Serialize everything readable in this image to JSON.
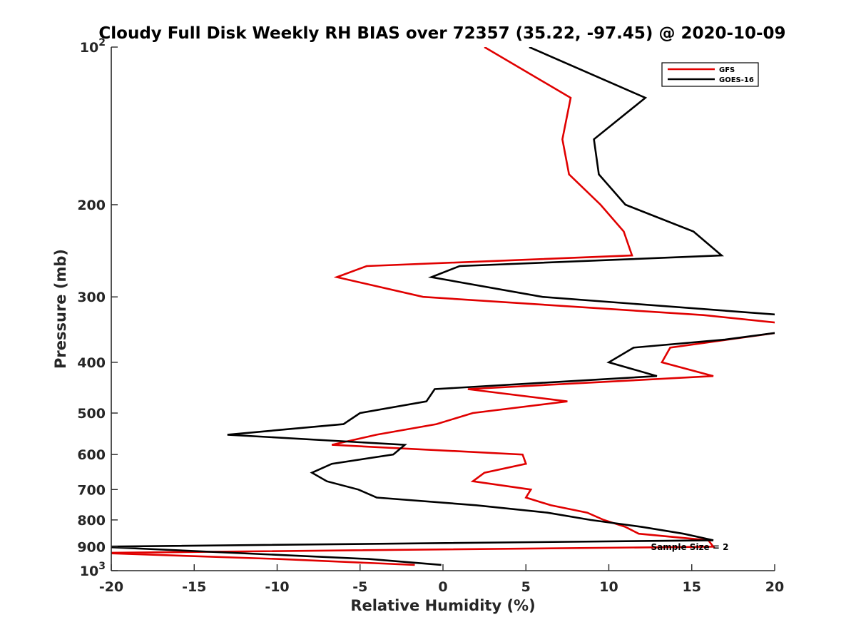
{
  "chart_data": {
    "type": "line",
    "title": "Cloudy Full Disk Weekly RH BIAS over 72357 (35.22, -97.45) @ 2020-10-09",
    "xlabel": "Relative Humidity (%)",
    "ylabel": "Pressure (mb)",
    "xlim": [
      -20,
      20
    ],
    "ylim": [
      100,
      1000
    ],
    "y_scale": "log",
    "y_reversed": true,
    "x_ticks": [
      -20,
      -15,
      -10,
      -5,
      0,
      5,
      10,
      15,
      20
    ],
    "x_tick_labels": [
      "-20",
      "-15",
      "-10",
      "-5",
      "0",
      "5",
      "10",
      "15",
      "20"
    ],
    "y_ticks": [
      100,
      200,
      300,
      400,
      500,
      600,
      700,
      800,
      900,
      1000
    ],
    "y_tick_labels": [
      {
        "base": "10",
        "sup": "2"
      },
      {
        "base": "200",
        "sup": ""
      },
      {
        "base": "300",
        "sup": ""
      },
      {
        "base": "400",
        "sup": ""
      },
      {
        "base": "500",
        "sup": ""
      },
      {
        "base": "600",
        "sup": ""
      },
      {
        "base": "700",
        "sup": ""
      },
      {
        "base": "800",
        "sup": ""
      },
      {
        "base": "900",
        "sup": ""
      },
      {
        "base": "10",
        "sup": "3"
      }
    ],
    "legend_position": "top-right",
    "annotation": "Sample Size = 2",
    "series": [
      {
        "name": "GFS",
        "color": "#e00000",
        "points": [
          {
            "x": 2.5,
            "y": 100
          },
          {
            "x": 7.7,
            "y": 125
          },
          {
            "x": 7.2,
            "y": 150
          },
          {
            "x": 7.6,
            "y": 175
          },
          {
            "x": 9.5,
            "y": 200
          },
          {
            "x": 10.9,
            "y": 225
          },
          {
            "x": 11.4,
            "y": 250
          },
          {
            "x": -4.6,
            "y": 262
          },
          {
            "x": -6.4,
            "y": 275
          },
          {
            "x": -1.2,
            "y": 300
          },
          {
            "x": 15.7,
            "y": 325
          },
          {
            "x": 20.5,
            "y": 337
          },
          {
            "x": 20.5,
            "y": 350
          },
          {
            "x": 13.7,
            "y": 375
          },
          {
            "x": 13.2,
            "y": 400
          },
          {
            "x": 16.3,
            "y": 425
          },
          {
            "x": 1.5,
            "y": 450
          },
          {
            "x": 7.5,
            "y": 475
          },
          {
            "x": 1.8,
            "y": 500
          },
          {
            "x": -0.4,
            "y": 525
          },
          {
            "x": -4.0,
            "y": 550
          },
          {
            "x": -6.7,
            "y": 575
          },
          {
            "x": 4.8,
            "y": 600
          },
          {
            "x": 5.0,
            "y": 625
          },
          {
            "x": 2.5,
            "y": 650
          },
          {
            "x": 1.8,
            "y": 675
          },
          {
            "x": 5.3,
            "y": 700
          },
          {
            "x": 5.0,
            "y": 725
          },
          {
            "x": 6.5,
            "y": 750
          },
          {
            "x": 8.7,
            "y": 775
          },
          {
            "x": 9.7,
            "y": 800
          },
          {
            "x": 11.0,
            "y": 825
          },
          {
            "x": 11.8,
            "y": 850
          },
          {
            "x": 16.0,
            "y": 875
          },
          {
            "x": 16.3,
            "y": 900
          },
          {
            "x": -20.8,
            "y": 925
          },
          {
            "x": -10.0,
            "y": 950
          },
          {
            "x": -1.7,
            "y": 975
          }
        ]
      },
      {
        "name": "GOES-16",
        "color": "#000000",
        "points": [
          {
            "x": 5.2,
            "y": 100
          },
          {
            "x": 12.2,
            "y": 125
          },
          {
            "x": 9.1,
            "y": 150
          },
          {
            "x": 9.4,
            "y": 175
          },
          {
            "x": 11.0,
            "y": 200
          },
          {
            "x": 15.1,
            "y": 225
          },
          {
            "x": 16.8,
            "y": 250
          },
          {
            "x": 1.0,
            "y": 262
          },
          {
            "x": -0.7,
            "y": 275
          },
          {
            "x": 6.0,
            "y": 300
          },
          {
            "x": 20.5,
            "y": 325
          },
          {
            "x": 20.5,
            "y": 350
          },
          {
            "x": 17.0,
            "y": 362
          },
          {
            "x": 11.5,
            "y": 375
          },
          {
            "x": 10.0,
            "y": 400
          },
          {
            "x": 12.9,
            "y": 425
          },
          {
            "x": -0.5,
            "y": 450
          },
          {
            "x": -1.0,
            "y": 475
          },
          {
            "x": -5.0,
            "y": 500
          },
          {
            "x": -6.0,
            "y": 525
          },
          {
            "x": -13.0,
            "y": 550
          },
          {
            "x": -2.3,
            "y": 575
          },
          {
            "x": -3.0,
            "y": 600
          },
          {
            "x": -6.7,
            "y": 625
          },
          {
            "x": -7.9,
            "y": 650
          },
          {
            "x": -7.0,
            "y": 675
          },
          {
            "x": -5.1,
            "y": 700
          },
          {
            "x": -4.0,
            "y": 725
          },
          {
            "x": 2.0,
            "y": 750
          },
          {
            "x": 6.3,
            "y": 775
          },
          {
            "x": 8.9,
            "y": 800
          },
          {
            "x": 12.0,
            "y": 825
          },
          {
            "x": 14.5,
            "y": 850
          },
          {
            "x": 16.3,
            "y": 875
          },
          {
            "x": -20.8,
            "y": 900
          },
          {
            "x": -4.5,
            "y": 950
          },
          {
            "x": -0.1,
            "y": 975
          }
        ]
      }
    ]
  }
}
